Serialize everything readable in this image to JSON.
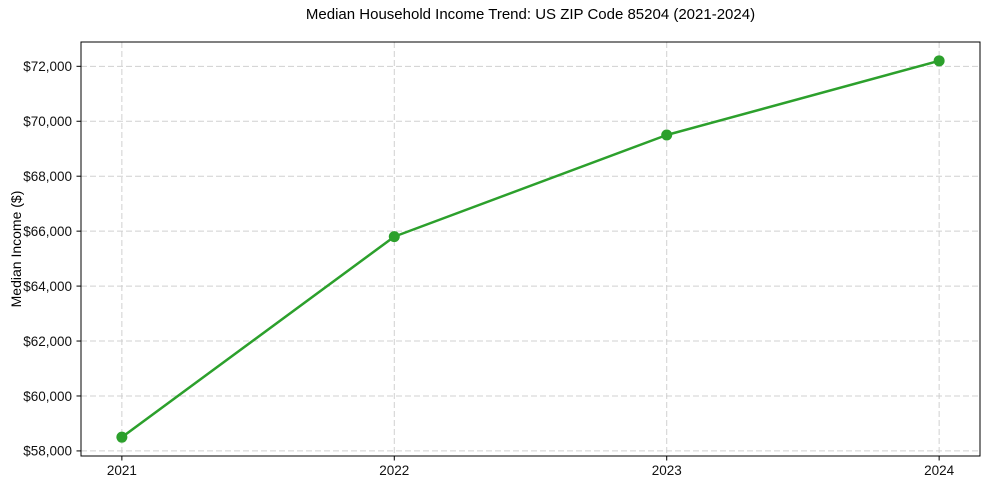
{
  "chart_data": {
    "type": "line",
    "title": "Median Household Income Trend: US ZIP Code 85204 (2021-2024)",
    "xlabel": "",
    "ylabel": "Median Income ($)",
    "x": [
      2021,
      2022,
      2023,
      2024
    ],
    "y": [
      58500,
      65800,
      69500,
      72200
    ],
    "xticks": [
      2021,
      2022,
      2023,
      2024
    ],
    "xtick_labels": [
      "2021",
      "2022",
      "2023",
      "2024"
    ],
    "yticks": [
      58000,
      60000,
      62000,
      64000,
      66000,
      68000,
      70000,
      72000
    ],
    "ytick_labels": [
      "$58,000",
      "$60,000",
      "$62,000",
      "$64,000",
      "$66,000",
      "$68,000",
      "$70,000",
      "$72,000"
    ],
    "xlim": [
      2020.85,
      2024.15
    ],
    "ylim": [
      57815,
      72885
    ],
    "line_color": "#2ca02c",
    "grid_color": "#d0d0d0",
    "grid": "both-dashed",
    "marker": "circle",
    "legend": "none"
  }
}
